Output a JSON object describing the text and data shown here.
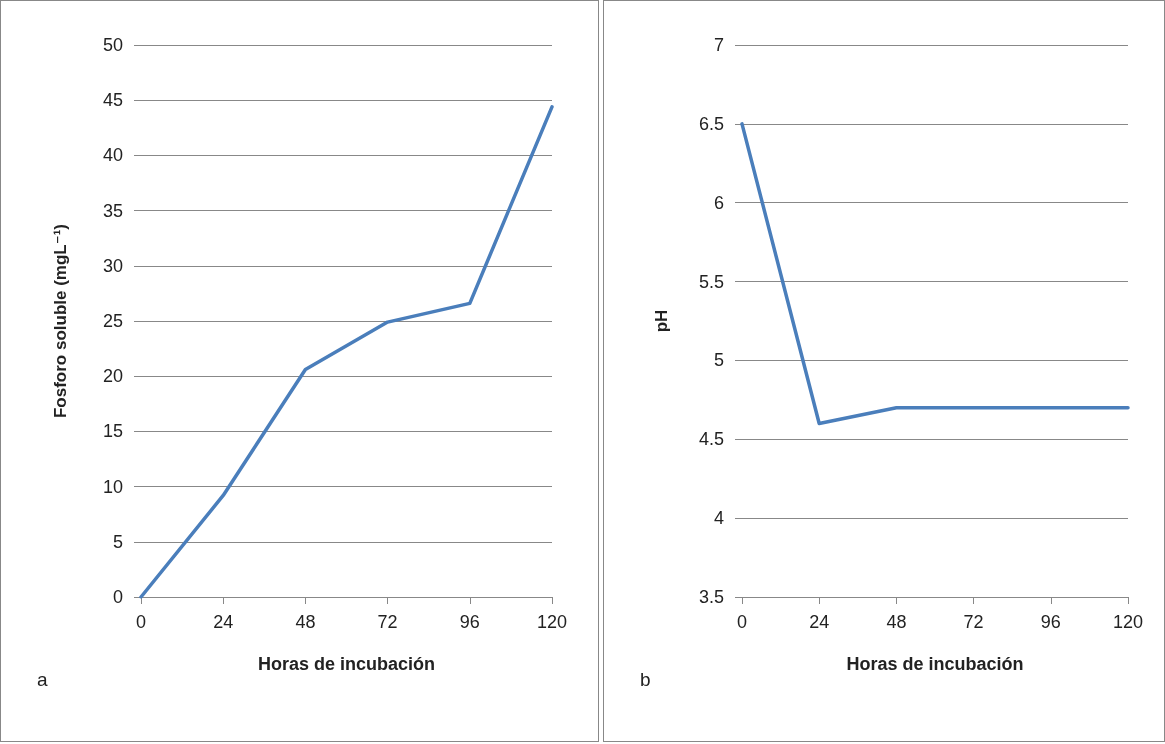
{
  "chart_data": [
    {
      "type": "line",
      "xlabel": "Horas de incubación",
      "ylabel": "Fosforo soluble (mgL⁻¹)",
      "categories": [
        "0",
        "24",
        "48",
        "72",
        "96",
        "120"
      ],
      "series": [
        {
          "color": "#4a7ebb",
          "values": [
            0,
            9.2,
            20.6,
            24.9,
            26.6,
            44.4
          ]
        }
      ],
      "ylim": [
        0,
        50
      ],
      "yticks": [
        0,
        5,
        10,
        15,
        20,
        25,
        30,
        35,
        40,
        45,
        50
      ],
      "grid": "y",
      "marker": "none",
      "line_style": "solid",
      "annotations": [
        "a"
      ]
    },
    {
      "type": "line",
      "xlabel": "Horas de incubación",
      "ylabel": "pH",
      "categories": [
        "0",
        "24",
        "48",
        "72",
        "96",
        "120"
      ],
      "series": [
        {
          "color": "#4a7ebb",
          "values": [
            6.5,
            4.6,
            4.7,
            4.7,
            4.7,
            4.7
          ]
        }
      ],
      "ylim": [
        3.5,
        7
      ],
      "yticks": [
        3.5,
        4,
        4.5,
        5,
        5.5,
        6,
        6.5,
        7
      ],
      "grid": "y",
      "marker": "none",
      "line_style": "solid",
      "annotations": [
        "b"
      ]
    }
  ]
}
